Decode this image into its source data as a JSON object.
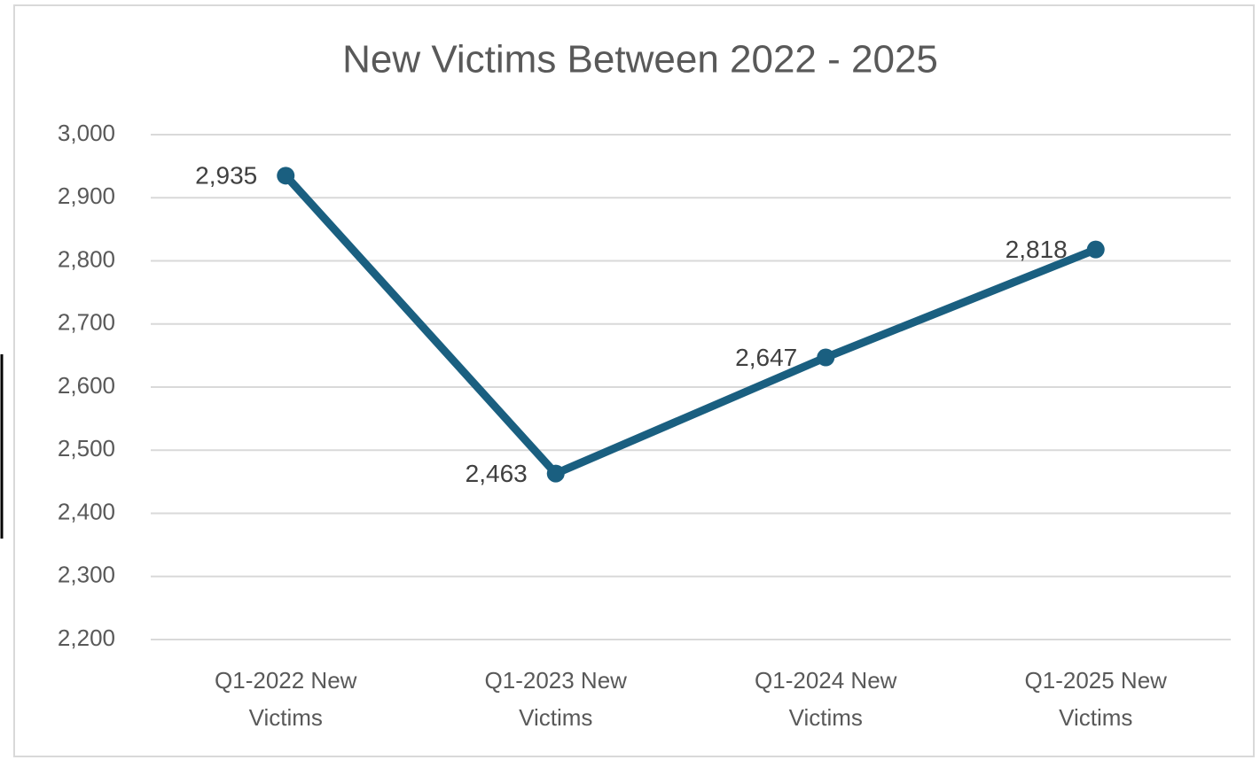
{
  "chart_data": {
    "type": "line",
    "title": "New Victims Between 2022 - 2025",
    "categories": [
      "Q1-2022 New Victims",
      "Q1-2023 New Victims",
      "Q1-2024 New Victims",
      "Q1-2025 New Victims"
    ],
    "series": [
      {
        "name": "New Victims",
        "color": "#1a5f80",
        "values": [
          2935,
          2463,
          2647,
          2818
        ],
        "value_labels": [
          "2,935",
          "2,463",
          "2,647",
          "2,818"
        ]
      }
    ],
    "ylim": [
      2200,
      3000
    ],
    "yticks": [
      {
        "value": 2200,
        "label": "2,200"
      },
      {
        "value": 2300,
        "label": "2,300"
      },
      {
        "value": 2400,
        "label": "2,400"
      },
      {
        "value": 2500,
        "label": "2,500"
      },
      {
        "value": 2600,
        "label": "2,600"
      },
      {
        "value": 2700,
        "label": "2,700"
      },
      {
        "value": 2800,
        "label": "2,800"
      },
      {
        "value": 2900,
        "label": "2,900"
      },
      {
        "value": 3000,
        "label": "3,000"
      }
    ],
    "grid": true
  }
}
